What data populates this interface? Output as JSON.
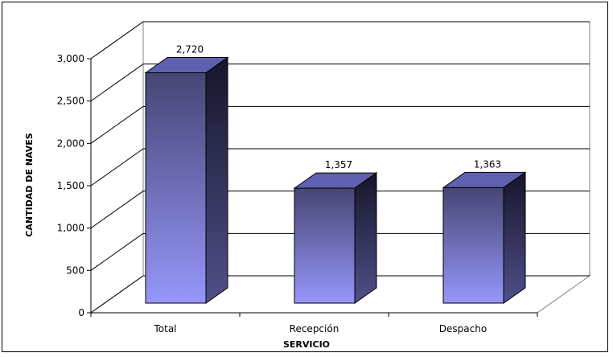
{
  "chart_data": {
    "type": "bar",
    "style": "3d-column",
    "categories": [
      "Total",
      "Recepción",
      "Despacho"
    ],
    "values": [
      2720,
      1357,
      1363
    ],
    "value_labels": [
      "2,720",
      "1,357",
      "1,363"
    ],
    "ylim": [
      0,
      3000
    ],
    "ytick_values": [
      0,
      500,
      1000,
      1500,
      2000,
      2500,
      3000
    ],
    "ytick_labels": [
      "0",
      "500",
      "1,000",
      "1,500",
      "2,000",
      "2,500",
      "3,000"
    ],
    "xlabel": "SERVICIO",
    "ylabel": "CANTIDAD DE NAVES",
    "grid": true,
    "legend": "none",
    "colors": {
      "bar_front_top": "#464675",
      "bar_front_bottom": "#9696fa",
      "bar_side_top": "#15152a",
      "bar_side_bottom": "#50508a",
      "bar_top_face": "#6060b0",
      "gridline": "#000000",
      "back_wall": "#ffffff"
    }
  }
}
